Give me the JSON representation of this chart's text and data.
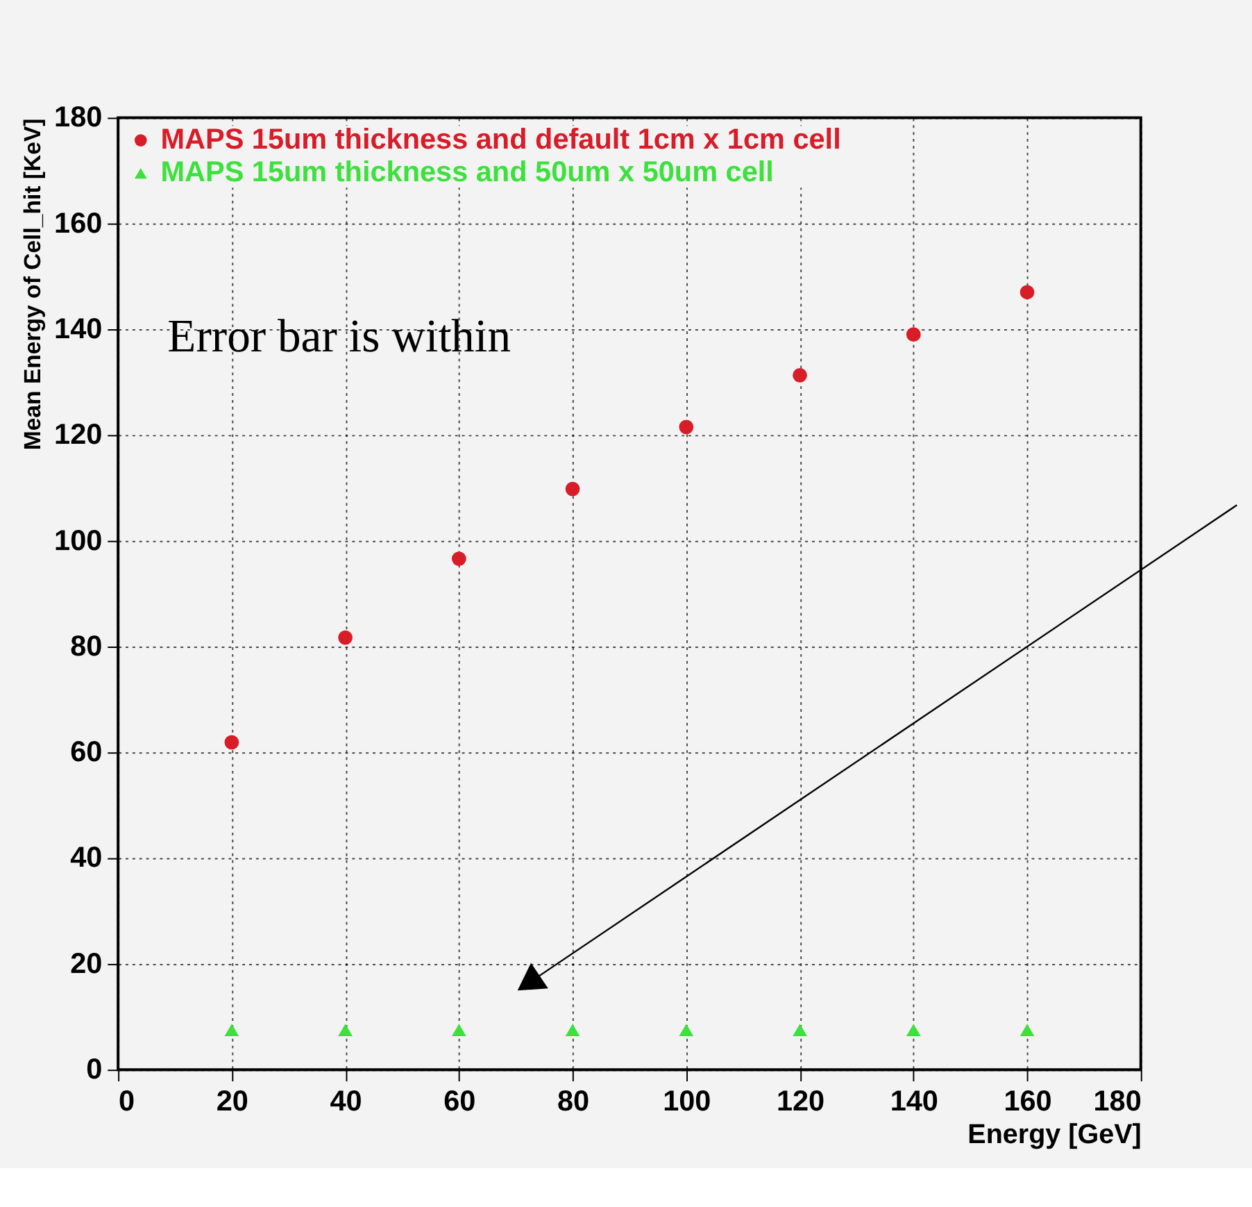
{
  "chart_data": {
    "type": "scatter",
    "xlabel": "Energy [GeV]",
    "ylabel": "Mean Energy of Cell_hit [KeV]",
    "x": [
      20,
      40,
      60,
      80,
      100,
      120,
      140,
      160
    ],
    "series": [
      {
        "name": "MAPS 15um thickness and default 1cm x 1cm cell",
        "color": "#d81c28",
        "marker": "circle",
        "values": [
          61.9,
          81.7,
          96.6,
          109.8,
          121.5,
          131.3,
          139,
          147
        ]
      },
      {
        "name": "MAPS 15um thickness and 50um x 50um cell",
        "color": "#3ee03e",
        "marker": "triangle",
        "values": [
          7.5,
          7.5,
          7.5,
          7.5,
          7.5,
          7.5,
          7.5,
          7.5
        ]
      }
    ],
    "xlim": [
      0,
      180
    ],
    "ylim": [
      0,
      180
    ],
    "xticks": [
      0,
      20,
      40,
      60,
      80,
      100,
      120,
      140,
      160,
      180
    ],
    "yticks": [
      0,
      20,
      40,
      60,
      80,
      100,
      120,
      140,
      160,
      180
    ],
    "grid": true,
    "legend": "top left",
    "annotations": [
      "Error bar is within"
    ]
  }
}
